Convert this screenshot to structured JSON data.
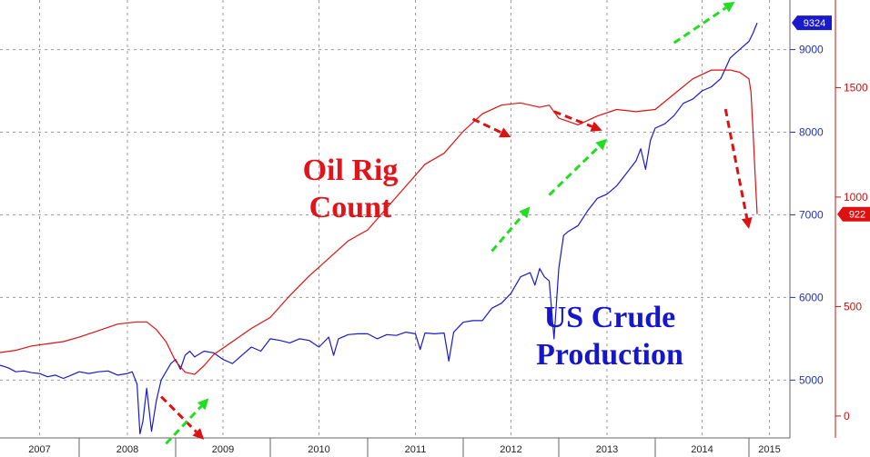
{
  "chart_data": {
    "type": "line",
    "x_categories": [
      "2007",
      "2008",
      "2009",
      "2010",
      "2011",
      "2012",
      "2013",
      "2014",
      "2015"
    ],
    "axes": {
      "left_blue": {
        "ticks": [
          5000,
          6000,
          7000,
          8000,
          9000
        ],
        "range": [
          4300,
          9600
        ]
      },
      "right_red": {
        "ticks": [
          0,
          500,
          1000,
          1500
        ],
        "range": [
          -100,
          1900
        ]
      }
    },
    "series": [
      {
        "name": "US Crude Production",
        "axis": "left_blue",
        "color": "#1a1acc",
        "last_value_label": "9324",
        "points": [
          [
            2007.0,
            5180
          ],
          [
            2007.1,
            5150
          ],
          [
            2007.2,
            5100
          ],
          [
            2007.3,
            5110
          ],
          [
            2007.4,
            5090
          ],
          [
            2007.5,
            5080
          ],
          [
            2007.6,
            5040
          ],
          [
            2007.7,
            5060
          ],
          [
            2007.8,
            5020
          ],
          [
            2007.9,
            5060
          ],
          [
            2008.0,
            5100
          ],
          [
            2008.1,
            5080
          ],
          [
            2008.2,
            5100
          ],
          [
            2008.3,
            5110
          ],
          [
            2008.4,
            5060
          ],
          [
            2008.5,
            5080
          ],
          [
            2008.55,
            5100
          ],
          [
            2008.6,
            4950
          ],
          [
            2008.63,
            4350
          ],
          [
            2008.66,
            4500
          ],
          [
            2008.7,
            4900
          ],
          [
            2008.75,
            4380
          ],
          [
            2008.8,
            4750
          ],
          [
            2008.85,
            5000
          ],
          [
            2008.9,
            5100
          ],
          [
            2008.95,
            5200
          ],
          [
            2009.0,
            5250
          ],
          [
            2009.05,
            5130
          ],
          [
            2009.1,
            5300
          ],
          [
            2009.15,
            5350
          ],
          [
            2009.2,
            5280
          ],
          [
            2009.3,
            5350
          ],
          [
            2009.4,
            5330
          ],
          [
            2009.5,
            5250
          ],
          [
            2009.6,
            5200
          ],
          [
            2009.7,
            5300
          ],
          [
            2009.8,
            5400
          ],
          [
            2009.9,
            5350
          ],
          [
            2010.0,
            5500
          ],
          [
            2010.1,
            5480
          ],
          [
            2010.2,
            5450
          ],
          [
            2010.3,
            5500
          ],
          [
            2010.4,
            5480
          ],
          [
            2010.5,
            5400
          ],
          [
            2010.6,
            5520
          ],
          [
            2010.65,
            5300
          ],
          [
            2010.7,
            5500
          ],
          [
            2010.8,
            5550
          ],
          [
            2010.9,
            5560
          ],
          [
            2011.0,
            5560
          ],
          [
            2011.1,
            5500
          ],
          [
            2011.2,
            5550
          ],
          [
            2011.3,
            5540
          ],
          [
            2011.4,
            5580
          ],
          [
            2011.5,
            5560
          ],
          [
            2011.55,
            5370
          ],
          [
            2011.6,
            5570
          ],
          [
            2011.7,
            5560
          ],
          [
            2011.8,
            5570
          ],
          [
            2011.85,
            5230
          ],
          [
            2011.9,
            5580
          ],
          [
            2012.0,
            5700
          ],
          [
            2012.1,
            5720
          ],
          [
            2012.2,
            5720
          ],
          [
            2012.3,
            5870
          ],
          [
            2012.4,
            5930
          ],
          [
            2012.5,
            6050
          ],
          [
            2012.6,
            6250
          ],
          [
            2012.7,
            6300
          ],
          [
            2012.75,
            6150
          ],
          [
            2012.8,
            6350
          ],
          [
            2012.85,
            6250
          ],
          [
            2012.9,
            6200
          ],
          [
            2012.95,
            5500
          ],
          [
            2013.0,
            6350
          ],
          [
            2013.05,
            6750
          ],
          [
            2013.1,
            6800
          ],
          [
            2013.2,
            6870
          ],
          [
            2013.3,
            7050
          ],
          [
            2013.4,
            7200
          ],
          [
            2013.5,
            7250
          ],
          [
            2013.6,
            7350
          ],
          [
            2013.7,
            7500
          ],
          [
            2013.8,
            7650
          ],
          [
            2013.85,
            7800
          ],
          [
            2013.9,
            7550
          ],
          [
            2013.95,
            7900
          ],
          [
            2014.0,
            8050
          ],
          [
            2014.1,
            8100
          ],
          [
            2014.2,
            8200
          ],
          [
            2014.3,
            8350
          ],
          [
            2014.4,
            8400
          ],
          [
            2014.5,
            8500
          ],
          [
            2014.6,
            8550
          ],
          [
            2014.7,
            8650
          ],
          [
            2014.8,
            8900
          ],
          [
            2014.9,
            9000
          ],
          [
            2015.0,
            9100
          ],
          [
            2015.1,
            9200
          ],
          [
            2015.2,
            9324
          ]
        ]
      },
      {
        "name": "Oil Rig Count",
        "axis": "right_red",
        "color": "#dd1111",
        "last_value_label": "922",
        "points": [
          [
            2007.0,
            290
          ],
          [
            2007.2,
            300
          ],
          [
            2007.4,
            320
          ],
          [
            2007.6,
            330
          ],
          [
            2007.8,
            340
          ],
          [
            2008.0,
            360
          ],
          [
            2008.2,
            390
          ],
          [
            2008.4,
            420
          ],
          [
            2008.6,
            430
          ],
          [
            2008.7,
            430
          ],
          [
            2008.8,
            395
          ],
          [
            2008.9,
            340
          ],
          [
            2009.0,
            250
          ],
          [
            2009.1,
            200
          ],
          [
            2009.2,
            190
          ],
          [
            2009.3,
            230
          ],
          [
            2009.4,
            280
          ],
          [
            2009.6,
            340
          ],
          [
            2009.8,
            400
          ],
          [
            2010.0,
            450
          ],
          [
            2010.2,
            550
          ],
          [
            2010.4,
            640
          ],
          [
            2010.6,
            720
          ],
          [
            2010.8,
            800
          ],
          [
            2011.0,
            850
          ],
          [
            2011.2,
            950
          ],
          [
            2011.4,
            1050
          ],
          [
            2011.6,
            1150
          ],
          [
            2011.8,
            1200
          ],
          [
            2012.0,
            1300
          ],
          [
            2012.2,
            1380
          ],
          [
            2012.4,
            1420
          ],
          [
            2012.6,
            1430
          ],
          [
            2012.8,
            1410
          ],
          [
            2012.9,
            1420
          ],
          [
            2013.0,
            1360
          ],
          [
            2013.2,
            1330
          ],
          [
            2013.4,
            1370
          ],
          [
            2013.6,
            1400
          ],
          [
            2013.8,
            1390
          ],
          [
            2014.0,
            1400
          ],
          [
            2014.2,
            1470
          ],
          [
            2014.4,
            1540
          ],
          [
            2014.6,
            1580
          ],
          [
            2014.8,
            1580
          ],
          [
            2014.9,
            1570
          ],
          [
            2015.0,
            1540
          ],
          [
            2015.05,
            1480
          ],
          [
            2015.1,
            1300
          ],
          [
            2015.15,
            1100
          ],
          [
            2015.2,
            922
          ]
        ]
      }
    ],
    "annotations": [
      {
        "series": "Oil Rig Count",
        "lines": [
          "Oil Rig",
          "Count"
        ],
        "color": "#e0141a"
      },
      {
        "series": "US Crude Production",
        "lines": [
          "US Crude",
          "Production"
        ],
        "color": "#1616cc"
      }
    ],
    "arrows": [
      {
        "kind": "down",
        "color": "#dd1111",
        "from": [
          2008.85,
          4800
        ],
        "to": [
          2009.3,
          4280
        ]
      },
      {
        "kind": "up",
        "color": "#22dd22",
        "from": [
          2008.9,
          4230
        ],
        "to": [
          2009.35,
          4780
        ]
      },
      {
        "kind": "down",
        "color": "#dd1111",
        "from": [
          2012.1,
          8160
        ],
        "to": [
          2012.5,
          7940
        ]
      },
      {
        "kind": "up",
        "color": "#22dd22",
        "from": [
          2012.3,
          6560
        ],
        "to": [
          2012.7,
          7100
        ]
      },
      {
        "kind": "up",
        "color": "#22dd22",
        "from": [
          2012.9,
          7240
        ],
        "to": [
          2013.5,
          7920
        ]
      },
      {
        "kind": "down",
        "color": "#dd1111",
        "from": [
          2012.95,
          8250
        ],
        "to": [
          2013.45,
          8020
        ]
      },
      {
        "kind": "up",
        "color": "#22dd22",
        "from": [
          2014.2,
          9080
        ],
        "to": [
          2014.85,
          9580
        ]
      },
      {
        "kind": "down",
        "color": "#dd1111",
        "from": [
          2014.75,
          8280
        ],
        "to": [
          2015.0,
          6830
        ]
      }
    ],
    "grid": true
  }
}
